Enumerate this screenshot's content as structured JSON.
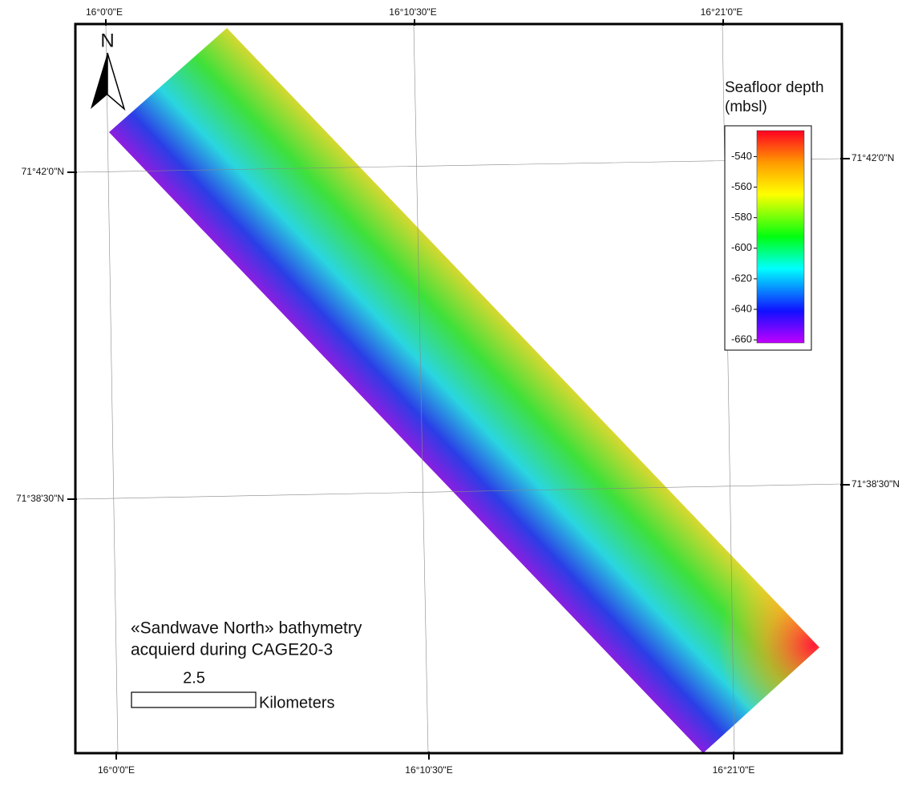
{
  "map": {
    "graticule": {
      "top": [
        "16°0'0\"E",
        "16°10'30\"E",
        "16°21'0\"E"
      ],
      "bottom": [
        "16°0'0\"E",
        "16°10'30\"E",
        "16°21'0\"E"
      ],
      "left": [
        "71°42'0\"N",
        "71°38'30\"N"
      ],
      "right": [
        "71°42'0\"N",
        "71°38'30\"N"
      ]
    },
    "north": "N",
    "legend": {
      "title": [
        "Seafloor depth",
        "(mbsl)"
      ],
      "range": [
        -523,
        -662
      ],
      "ticks": [
        -540,
        -560,
        -580,
        -600,
        -620,
        -640,
        -660
      ]
    },
    "caption": [
      "«Sandwave North» bathymetry",
      "acquierd during CAGE20-3"
    ],
    "scale_bar": {
      "value": "2.5",
      "unit": "Kilometers"
    }
  }
}
